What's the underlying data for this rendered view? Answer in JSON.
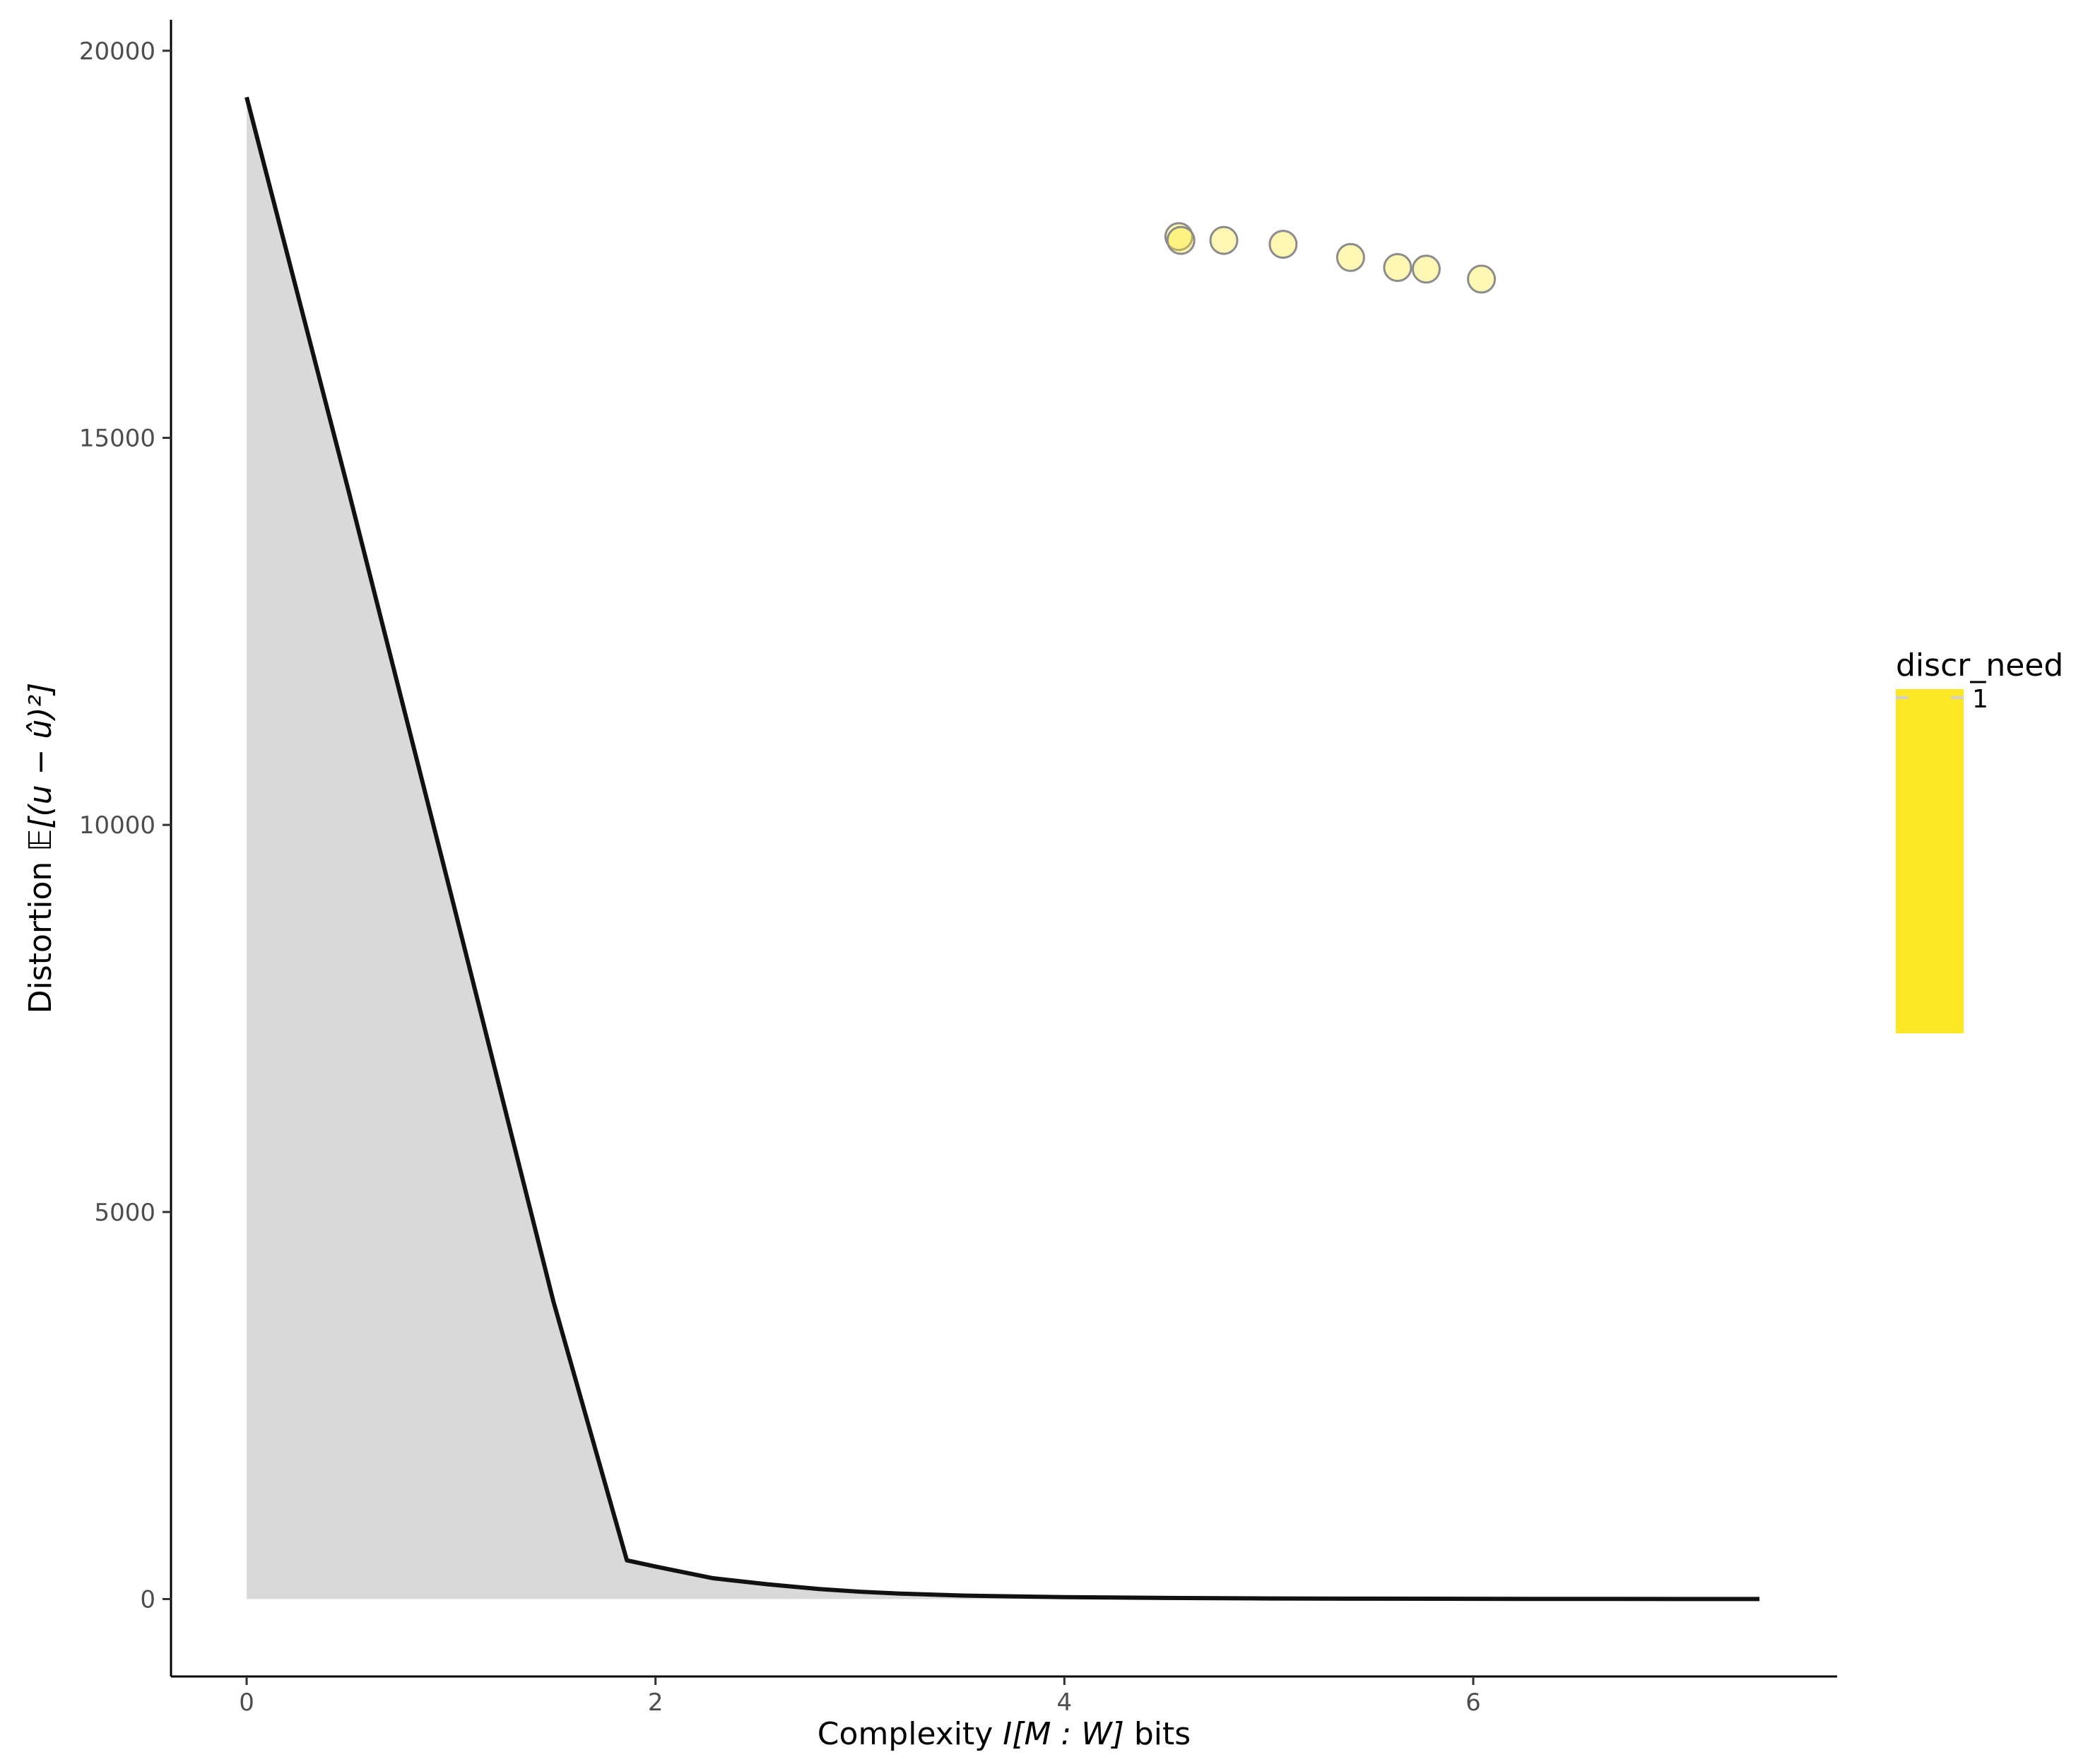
{
  "chart_data": {
    "type": "line",
    "title": "",
    "xlabel": {
      "prefix": "Complexity ",
      "math": "I[M : W]",
      "suffix": " bits"
    },
    "ylabel": {
      "prefix": "Distortion ",
      "math": "𝔼[(u − û)²]"
    },
    "xlim": [
      -0.37,
      7.78
    ],
    "ylim": [
      -1000,
      20400
    ],
    "x_ticks": [
      0,
      2,
      4,
      6
    ],
    "y_ticks": [
      0,
      5000,
      10000,
      15000,
      20000
    ],
    "grid": false,
    "curve": {
      "color": "#111111",
      "fill": "#d9d9d9",
      "x": [
        0,
        0.5,
        1.0,
        1.5,
        1.86,
        2.0,
        2.28,
        2.55,
        2.8,
        3.0,
        3.2,
        3.5,
        4.0,
        4.5,
        5.0,
        5.5,
        6.0,
        6.5,
        7.0,
        7.4
      ],
      "y": [
        19400,
        14300,
        9100,
        3850,
        500,
        420,
        270,
        190,
        130,
        95,
        70,
        45,
        25,
        14,
        8,
        5,
        3,
        2,
        1,
        1
      ]
    },
    "points": {
      "color": "#fde725",
      "stroke": "#8c8c8c",
      "x": [
        4.56,
        4.57,
        4.78,
        5.07,
        5.4,
        5.63,
        5.77,
        6.04
      ],
      "y": [
        17600,
        17550,
        17550,
        17500,
        17330,
        17200,
        17180,
        17050
      ]
    },
    "legend": {
      "title": "discr_need",
      "label": "1",
      "color": "#fde725",
      "placement": "right"
    }
  }
}
